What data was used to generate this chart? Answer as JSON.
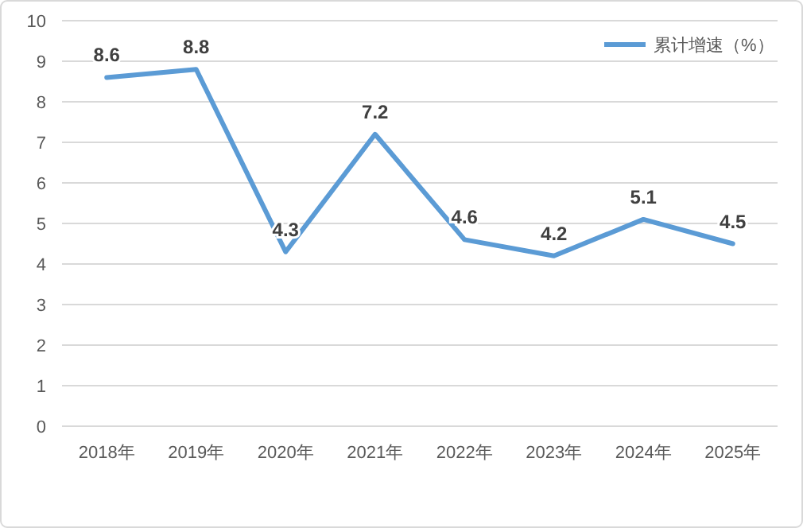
{
  "chart_data": {
    "type": "line",
    "categories": [
      "2018年",
      "2019年",
      "2020年",
      "2021年",
      "2022年",
      "2023年",
      "2024年",
      "2025年"
    ],
    "series": [
      {
        "name": "累计增速（%）",
        "color": "#5b9bd5",
        "values": [
          8.6,
          8.8,
          4.3,
          7.2,
          4.6,
          4.2,
          5.1,
          4.5
        ]
      }
    ],
    "ylim": [
      0,
      10
    ],
    "yticks": [
      0,
      1,
      2,
      3,
      4,
      5,
      6,
      7,
      8,
      9,
      10
    ],
    "grid": "y",
    "legend": "top right",
    "data_labels": true
  }
}
